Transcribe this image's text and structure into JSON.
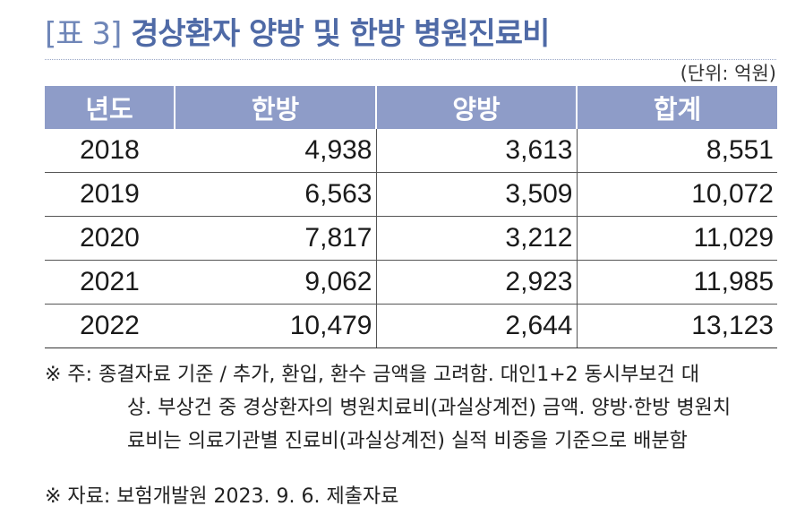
{
  "title": {
    "number": "[표 3]",
    "text": "경상환자 양방 및 한방 병원진료비"
  },
  "unit": "(단위: 억원)",
  "table": {
    "headers": [
      "년도",
      "한방",
      "양방",
      "합계"
    ],
    "rows": [
      {
        "year": "2018",
        "korean_med": "4,938",
        "western_med": "3,613",
        "total": "8,551"
      },
      {
        "year": "2019",
        "korean_med": "6,563",
        "western_med": "3,509",
        "total": "10,072"
      },
      {
        "year": "2020",
        "korean_med": "7,817",
        "western_med": "3,212",
        "total": "11,029"
      },
      {
        "year": "2021",
        "korean_med": "9,062",
        "western_med": "2,923",
        "total": "11,985"
      },
      {
        "year": "2022",
        "korean_med": "10,479",
        "western_med": "2,644",
        "total": "13,123"
      }
    ]
  },
  "notes": {
    "line1": "※ 주: 종결자료 기준 / 추가, 환입, 환수 금액을 고려함. 대인1+2 동시부보건 대",
    "line2": "상. 부상건 중 경상환자의 병원치료비(과실상계전) 금액. 양방·한방 병원치",
    "line3": "료비는 의료기관별 진료비(과실상계전) 실적 비중을 기준으로 배분함"
  },
  "source": "※ 자료: 보험개발원 2023. 9. 6. 제출자료"
}
